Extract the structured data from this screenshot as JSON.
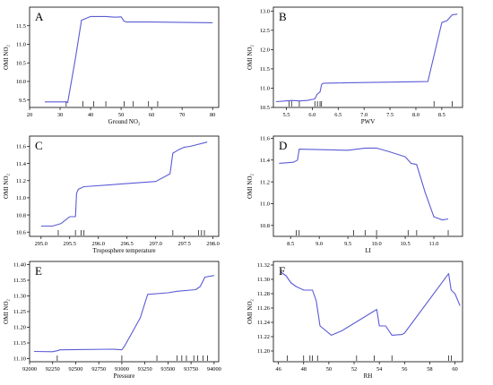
{
  "figure_colors": {
    "line": "#5b5bd6",
    "axes": "#000000",
    "background": "#ffffff"
  },
  "chart_data": [
    {
      "panel": "A",
      "type": "line",
      "xlabel": "Ground NO₂",
      "ylabel": "OMI NO₂",
      "xlim": [
        20,
        82
      ],
      "ylim": [
        9.3,
        12.0
      ],
      "xticks": [
        20,
        30,
        40,
        50,
        60,
        70,
        80
      ],
      "xtick_labels": [
        "20",
        "30",
        "40",
        "50",
        "60",
        "70",
        "80"
      ],
      "yticks": [
        9.5,
        10.0,
        10.5,
        11.0,
        11.5
      ],
      "ytick_labels": [
        "9.5",
        "10.0",
        "10.5",
        "11.0",
        "11.5"
      ],
      "rug": [
        32,
        37.5,
        41,
        45,
        51,
        54,
        59,
        62
      ],
      "x": [
        25,
        32,
        32.5,
        35,
        37,
        38,
        40,
        45,
        48,
        50,
        51,
        52,
        60,
        80
      ],
      "y": [
        9.45,
        9.45,
        9.43,
        10.6,
        11.65,
        11.68,
        11.75,
        11.75,
        11.73,
        11.74,
        11.62,
        11.6,
        11.6,
        11.58
      ]
    },
    {
      "panel": "B",
      "type": "line",
      "xlabel": "PWV",
      "ylabel": "OMI NO₂",
      "xlim": [
        5.25,
        8.9
      ],
      "ylim": [
        10.5,
        13.1
      ],
      "xticks": [
        5.5,
        6.0,
        6.5,
        7.0,
        7.5,
        8.0,
        8.5
      ],
      "xtick_labels": [
        "5.5",
        "6.0",
        "6.5",
        "7.0",
        "7.5",
        "8.0",
        "8.5"
      ],
      "yticks": [
        10.5,
        11.0,
        11.5,
        12.0,
        12.5,
        13.0
      ],
      "ytick_labels": [
        "10.5",
        "11.0",
        "11.5",
        "12.0",
        "12.5",
        "13.0"
      ],
      "rug": [
        5.55,
        5.6,
        5.75,
        6.05,
        6.1,
        6.15,
        6.18,
        8.35,
        8.7
      ],
      "x": [
        5.3,
        5.5,
        5.6,
        5.75,
        5.9,
        6.05,
        6.1,
        6.15,
        6.18,
        6.22,
        8.23,
        8.5,
        8.6,
        8.7,
        8.8
      ],
      "y": [
        10.65,
        10.67,
        10.68,
        10.67,
        10.68,
        10.72,
        10.85,
        10.9,
        11.1,
        11.13,
        11.17,
        12.7,
        12.75,
        12.9,
        12.92
      ]
    },
    {
      "panel": "C",
      "type": "line",
      "xlabel": "Troposphere temperature",
      "ylabel": "OMI NO₂",
      "xlim": [
        294.8,
        298.1
      ],
      "ylim": [
        10.55,
        11.72
      ],
      "xticks": [
        295.0,
        295.5,
        296.0,
        296.5,
        297.0,
        297.5,
        298.0
      ],
      "xtick_labels": [
        "295.0",
        "295.5",
        "296.0",
        "296.5",
        "297.0",
        "297.5",
        "298.0"
      ],
      "yticks": [
        10.6,
        10.8,
        11.0,
        11.2,
        11.4,
        11.6
      ],
      "ytick_labels": [
        "10.6",
        "10.8",
        "11.0",
        "11.2",
        "11.4",
        "11.6"
      ],
      "rug": [
        295.3,
        295.6,
        295.7,
        295.75,
        297.3,
        297.75,
        297.8,
        297.85
      ],
      "x": [
        295.0,
        295.2,
        295.35,
        295.5,
        295.6,
        295.62,
        295.65,
        295.75,
        297.0,
        297.25,
        297.3,
        297.4,
        297.5,
        297.6,
        297.9
      ],
      "y": [
        10.67,
        10.67,
        10.7,
        10.78,
        10.78,
        11.05,
        11.1,
        11.13,
        11.19,
        11.28,
        11.52,
        11.56,
        11.59,
        11.6,
        11.65
      ]
    },
    {
      "panel": "D",
      "type": "line",
      "xlabel": "LI",
      "ylabel": "OMI NO₂",
      "xlim": [
        8.2,
        11.5
      ],
      "ylim": [
        10.7,
        11.62
      ],
      "xticks": [
        8.5,
        9.0,
        9.5,
        10.0,
        10.5,
        11.0
      ],
      "xtick_labels": [
        "8.5",
        "9.0",
        "9.5",
        "10.0",
        "10.5",
        "11.0"
      ],
      "yticks": [
        10.8,
        11.0,
        11.2,
        11.4,
        11.6
      ],
      "ytick_labels": [
        "10.8",
        "11.0",
        "11.2",
        "11.4",
        "11.6"
      ],
      "rug": [
        8.6,
        8.65,
        9.6,
        9.8,
        10.0,
        10.55,
        10.7,
        11.25
      ],
      "x": [
        8.3,
        8.55,
        8.62,
        8.65,
        9.5,
        9.8,
        10.0,
        10.2,
        10.5,
        10.6,
        10.7,
        10.85,
        11.0,
        11.15,
        11.25
      ],
      "y": [
        11.37,
        11.38,
        11.4,
        11.5,
        11.49,
        11.51,
        11.51,
        11.48,
        11.43,
        11.37,
        11.36,
        11.1,
        10.88,
        10.85,
        10.86
      ]
    },
    {
      "panel": "E",
      "type": "line",
      "xlabel": "Pressure",
      "ylabel": "OMI NO₂",
      "xlim": [
        92000,
        94050
      ],
      "ylim": [
        11.09,
        11.41
      ],
      "xticks": [
        92000,
        92250,
        92500,
        92750,
        93000,
        93250,
        93500,
        93750,
        94000
      ],
      "xtick_labels": [
        "92000",
        "92250",
        "92500",
        "92750",
        "93000",
        "93250",
        "93500",
        "93750",
        "94000"
      ],
      "yticks": [
        11.1,
        11.15,
        11.2,
        11.25,
        11.3,
        11.35,
        11.4
      ],
      "ytick_labels": [
        "11.10",
        "11.15",
        "11.20",
        "11.25",
        "11.30",
        "11.35",
        "11.40"
      ],
      "rug": [
        92300,
        93000,
        93380,
        93600,
        93650,
        93700,
        93780,
        93820,
        93880,
        93930
      ],
      "x": [
        92050,
        92250,
        92300,
        92330,
        92900,
        93000,
        93030,
        93200,
        93280,
        93500,
        93600,
        93800,
        93850,
        93900,
        94000
      ],
      "y": [
        11.123,
        11.122,
        11.125,
        11.128,
        11.13,
        11.128,
        11.14,
        11.23,
        11.305,
        11.31,
        11.315,
        11.32,
        11.33,
        11.36,
        11.365
      ]
    },
    {
      "panel": "F",
      "type": "line",
      "xlabel": "RH",
      "ylabel": "OMI NO₂",
      "xlim": [
        45.6,
        60.6
      ],
      "ylim": [
        11.185,
        11.325
      ],
      "xticks": [
        46,
        48,
        50,
        52,
        54,
        56,
        58,
        60
      ],
      "xtick_labels": [
        "46",
        "48",
        "50",
        "52",
        "54",
        "56",
        "58",
        "60"
      ],
      "yticks": [
        11.2,
        11.22,
        11.24,
        11.26,
        11.28,
        11.3,
        11.32
      ],
      "ytick_labels": [
        "11.20",
        "11.22",
        "11.24",
        "11.26",
        "11.28",
        "11.30",
        "11.32"
      ],
      "rug": [
        46.7,
        48,
        48.5,
        48.7,
        49.1,
        52.2,
        53.6,
        55,
        59.5,
        59.7
      ],
      "x": [
        46.2,
        46.6,
        47.0,
        47.4,
        48.0,
        48.7,
        49.0,
        49.3,
        50.2,
        51.0,
        53.8,
        54.0,
        54.5,
        55.0,
        55.8,
        56.0,
        59.5,
        59.7,
        60.0,
        60.4
      ],
      "y": [
        11.31,
        11.305,
        11.295,
        11.29,
        11.285,
        11.285,
        11.27,
        11.235,
        11.222,
        11.228,
        11.258,
        11.235,
        11.235,
        11.222,
        11.223,
        11.225,
        11.308,
        11.285,
        11.28,
        11.263
      ]
    }
  ]
}
